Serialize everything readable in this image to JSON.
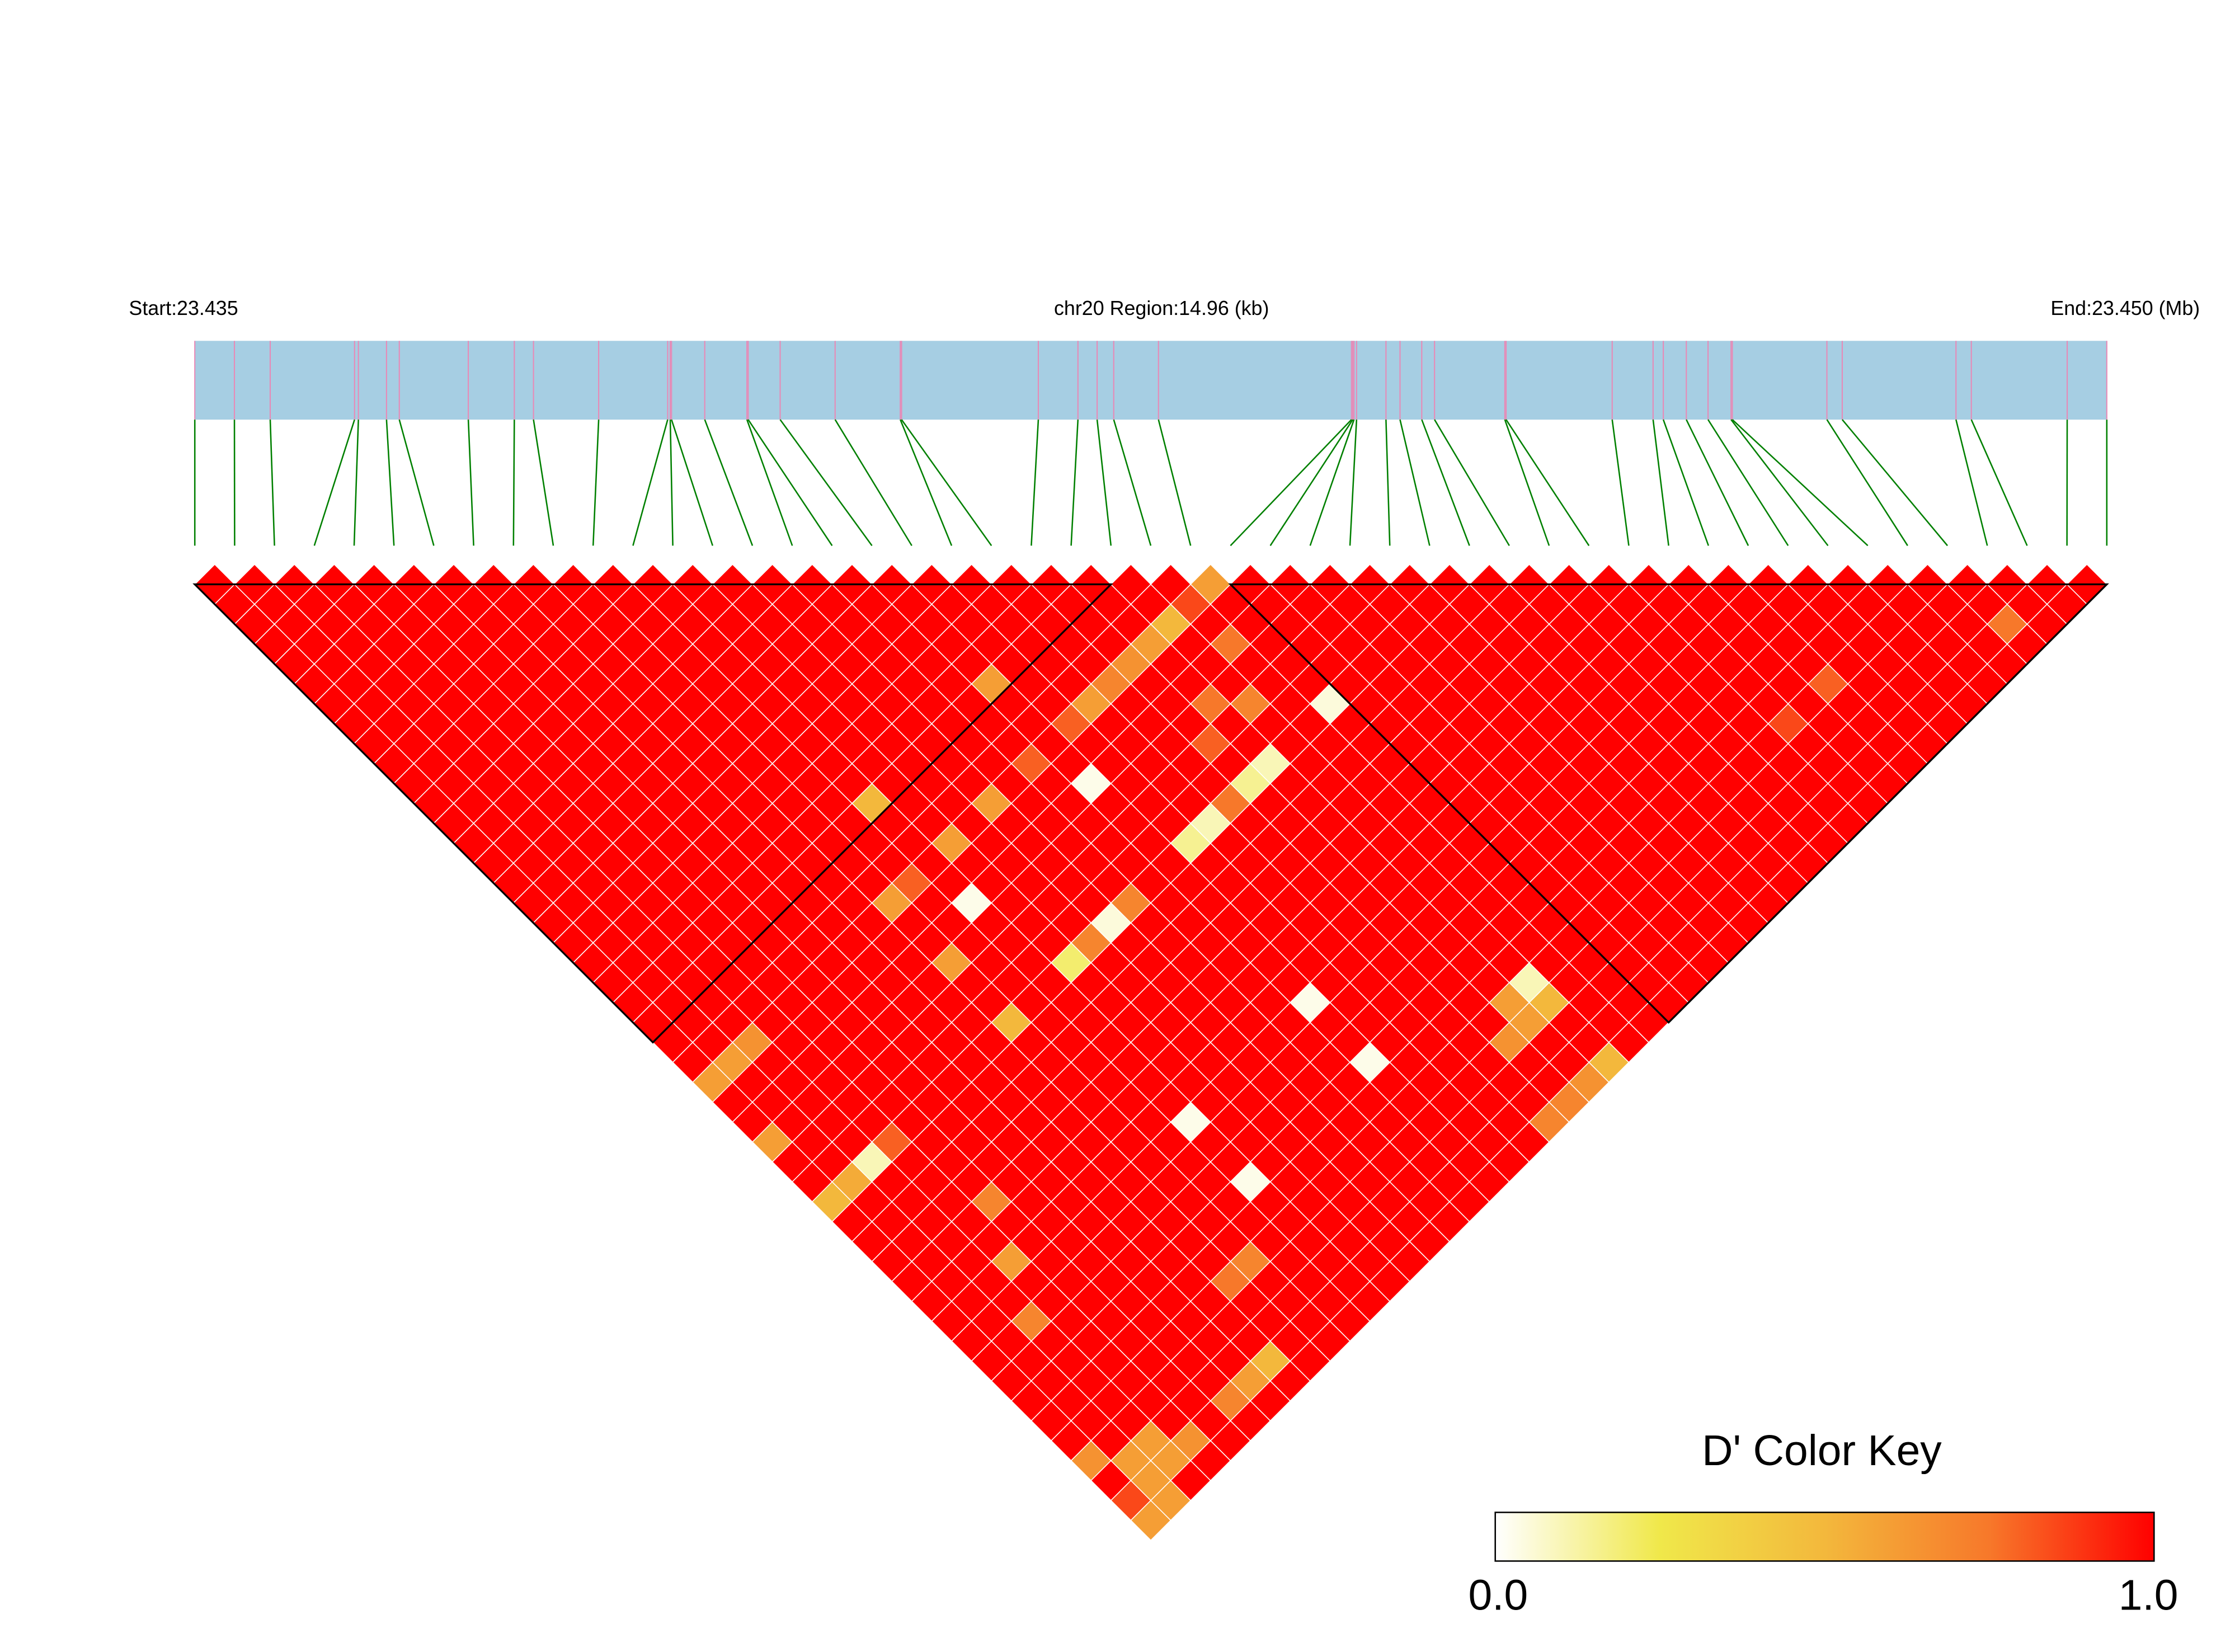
{
  "chart_data": {
    "type": "heatmap",
    "header": {
      "start_label": "Start:23.435",
      "region_label": "chr20 Region:14.96 (kb)",
      "end_label": "End:23.450 (Mb)"
    },
    "snp_positions_mb": [
      23.435,
      23.43531,
      23.43559,
      23.43625,
      23.43628,
      23.4365,
      23.4366,
      23.43714,
      23.4375,
      23.43765,
      23.43816,
      23.4387,
      23.43872,
      23.43873,
      23.43899,
      23.43932,
      23.43933,
      23.43958,
      23.44001,
      23.44052,
      23.44053,
      23.4416,
      23.44191,
      23.44206,
      23.44219,
      23.44254,
      23.44405,
      23.44406,
      23.44407,
      23.44409,
      23.44432,
      23.44443,
      23.4446,
      23.4447,
      23.44525,
      23.44526,
      23.44609,
      23.44641,
      23.44649,
      23.44667,
      23.44684,
      23.44702,
      23.44703,
      23.44777,
      23.44789,
      23.44878,
      23.4489,
      23.44965,
      23.44996
    ],
    "metric": "D'",
    "default_value": 1.0,
    "pair_values": [
      [
        25,
        26,
        0.6
      ],
      [
        23,
        26,
        0.5
      ],
      [
        22,
        26,
        0.6
      ],
      [
        21,
        26,
        0.65
      ],
      [
        24,
        26,
        0.85
      ],
      [
        20,
        26,
        0.7
      ],
      [
        18,
        26,
        0.8
      ],
      [
        16,
        26,
        0.8
      ],
      [
        10,
        26,
        0.8
      ],
      [
        17,
        23,
        0.6
      ],
      [
        11,
        23,
        0.5
      ],
      [
        25,
        32,
        0.05
      ],
      [
        17,
        28,
        0.03
      ],
      [
        22,
        32,
        0.1
      ],
      [
        21,
        32,
        0.15
      ],
      [
        19,
        32,
        0.1
      ],
      [
        18,
        32,
        0.15
      ],
      [
        11,
        28,
        0.03
      ],
      [
        14,
        32,
        0.05
      ],
      [
        12,
        32,
        0.2
      ],
      [
        17,
        39,
        0.03
      ],
      [
        23,
        44,
        0.1
      ],
      [
        23,
        45,
        0.5
      ],
      [
        17,
        42,
        0.03
      ],
      [
        11,
        39,
        0.03
      ],
      [
        11,
        42,
        0.03
      ],
      [
        2,
        32,
        0.1
      ],
      [
        23,
        48,
        0.5
      ],
      [
        7,
        47,
        0.5
      ],
      [
        9,
        32,
        0.5
      ],
      [
        9,
        26,
        0.6
      ],
      [
        12,
        26,
        0.6
      ],
      [
        9,
        29,
        0.6
      ],
      [
        14,
        26,
        0.6
      ],
      [
        19,
        26,
        0.6
      ],
      [
        44,
        47,
        0.75
      ],
      [
        38,
        44,
        0.8
      ],
      [
        36,
        44,
        0.85
      ],
      [
        0,
        32,
        0.5
      ],
      [
        1,
        32,
        0.55
      ],
      [
        0,
        26,
        0.6
      ],
      [
        1,
        26,
        0.6
      ],
      [
        2,
        26,
        0.65
      ],
      [
        0,
        29,
        0.6
      ],
      [
        0,
        48,
        0.6
      ],
      [
        1,
        48,
        0.6
      ],
      [
        0,
        47,
        0.85
      ],
      [
        1,
        47,
        0.6
      ],
      [
        0,
        45,
        0.65
      ],
      [
        1,
        46,
        0.6
      ],
      [
        24,
        28,
        0.75
      ],
      [
        23,
        30,
        0.7
      ],
      [
        22,
        29,
        0.75
      ],
      [
        21,
        30,
        0.8
      ],
      [
        13,
        32,
        0.7
      ],
      [
        20,
        32,
        0.75
      ],
      [
        15,
        32,
        0.7
      ],
      [
        22,
        44,
        0.6
      ],
      [
        22,
        45,
        0.6
      ],
      [
        21,
        45,
        0.65
      ],
      [
        22,
        48,
        0.65
      ],
      [
        21,
        48,
        0.7
      ],
      [
        20,
        48,
        0.7
      ],
      [
        3,
        32,
        0.8
      ],
      [
        4,
        36,
        0.7
      ],
      [
        3,
        38,
        0.6
      ],
      [
        2,
        40,
        0.7
      ],
      [
        5,
        47,
        0.7
      ],
      [
        6,
        47,
        0.6
      ],
      [
        2,
        46,
        0.6
      ],
      [
        2,
        47,
        0.6
      ],
      [
        3,
        47,
        0.65
      ],
      [
        8,
        44,
        0.75
      ],
      [
        9,
        44,
        0.7
      ]
    ],
    "blocks": [
      [
        1,
        24
      ],
      [
        27,
        49
      ]
    ],
    "colors": {
      "gene_bar": "#a6cee3",
      "snp_tick": "#e889b6",
      "connector": "#008000",
      "scale": [
        "#ffffff",
        "#f0e84a",
        "#f3b83c",
        "#f7782a",
        "#ff0000"
      ]
    },
    "legend": {
      "title": "D' Color Key",
      "min_label": "0.0",
      "max_label": "1.0",
      "range": [
        0,
        1
      ],
      "placement": "bottom-right"
    }
  }
}
